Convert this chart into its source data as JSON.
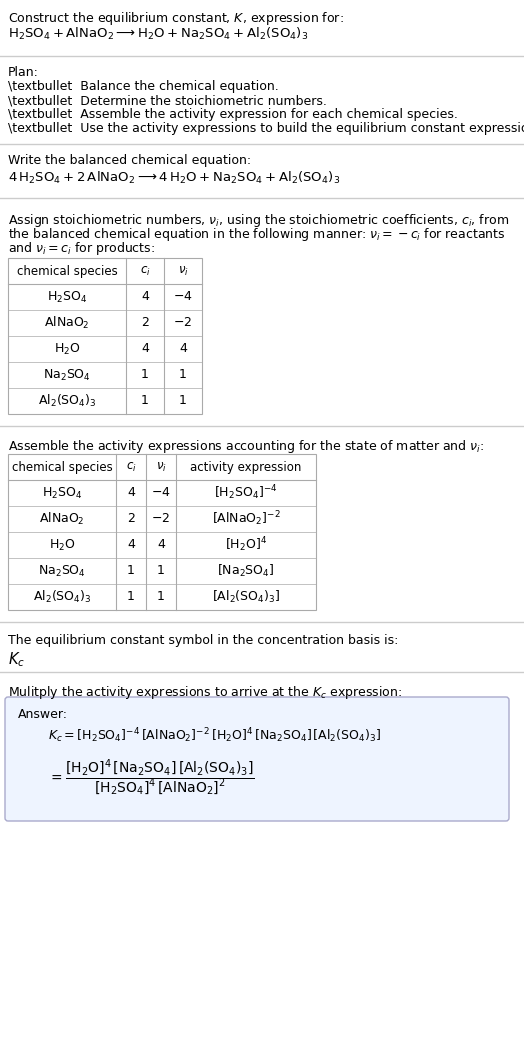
{
  "bg_color": "#ffffff",
  "text_color": "#000000",
  "line_color": "#cccccc",
  "table_border": "#aaaaaa",
  "answer_bg": "#eef4ff",
  "title_line1": "Construct the equilibrium constant, $K$, expression for:",
  "title_line2": "$\\mathrm{H_2SO_4 + AlNaO_2 \\longrightarrow H_2O + Na_2SO_4 + Al_2(SO_4)_3}$",
  "plan_header": "Plan:",
  "plan_bullets": [
    "\\textbullet  Balance the chemical equation.",
    "\\textbullet  Determine the stoichiometric numbers.",
    "\\textbullet  Assemble the activity expression for each chemical species.",
    "\\textbullet  Use the activity expressions to build the equilibrium constant expression."
  ],
  "balanced_header": "Write the balanced chemical equation:",
  "balanced_eq": "$4\\,\\mathrm{H_2SO_4} + 2\\,\\mathrm{AlNaO_2} \\longrightarrow 4\\,\\mathrm{H_2O} + \\mathrm{Na_2SO_4} + \\mathrm{Al_2(SO_4)_3}$",
  "stoich_header_parts": [
    "Assign stoichiometric numbers, $\\nu_i$, using the stoichiometric coefficients, $c_i$, from",
    "the balanced chemical equation in the following manner: $\\nu_i = -c_i$ for reactants",
    "and $\\nu_i = c_i$ for products:"
  ],
  "table1_cols": [
    "chemical species",
    "$c_i$",
    "$\\nu_i$"
  ],
  "table1_rows": [
    [
      "$\\mathrm{H_2SO_4}$",
      "4",
      "$-4$"
    ],
    [
      "$\\mathrm{AlNaO_2}$",
      "2",
      "$-2$"
    ],
    [
      "$\\mathrm{H_2O}$",
      "4",
      "4"
    ],
    [
      "$\\mathrm{Na_2SO_4}$",
      "1",
      "1"
    ],
    [
      "$\\mathrm{Al_2(SO_4)_3}$",
      "1",
      "1"
    ]
  ],
  "activity_header": "Assemble the activity expressions accounting for the state of matter and $\\nu_i$:",
  "table2_cols": [
    "chemical species",
    "$c_i$",
    "$\\nu_i$",
    "activity expression"
  ],
  "table2_rows": [
    [
      "$\\mathrm{H_2SO_4}$",
      "4",
      "$-4$",
      "$[\\mathrm{H_2SO_4}]^{-4}$"
    ],
    [
      "$\\mathrm{AlNaO_2}$",
      "2",
      "$-2$",
      "$[\\mathrm{AlNaO_2}]^{-2}$"
    ],
    [
      "$\\mathrm{H_2O}$",
      "4",
      "4",
      "$[\\mathrm{H_2O}]^4$"
    ],
    [
      "$\\mathrm{Na_2SO_4}$",
      "1",
      "1",
      "$[\\mathrm{Na_2SO_4}]$"
    ],
    [
      "$\\mathrm{Al_2(SO_4)_3}$",
      "1",
      "1",
      "$[\\mathrm{Al_2(SO_4)_3}]$"
    ]
  ],
  "kc_header": "The equilibrium constant symbol in the concentration basis is:",
  "kc_symbol": "$K_c$",
  "multiply_header": "Mulitply the activity expressions to arrive at the $K_c$ expression:",
  "answer_label": "Answer:",
  "answer_line1": "$K_c = [\\mathrm{H_2SO_4}]^{-4}\\,[\\mathrm{AlNaO_2}]^{-2}\\,[\\mathrm{H_2O}]^4\\,[\\mathrm{Na_2SO_4}]\\,[\\mathrm{Al_2(SO_4)_3}]$",
  "answer_eq_lhs": "$= \\dfrac{[\\mathrm{H_2O}]^4\\,[\\mathrm{Na_2SO_4}]\\,[\\mathrm{Al_2(SO_4)_3}]}{[\\mathrm{H_2SO_4}]^4\\,[\\mathrm{AlNaO_2}]^2}$"
}
